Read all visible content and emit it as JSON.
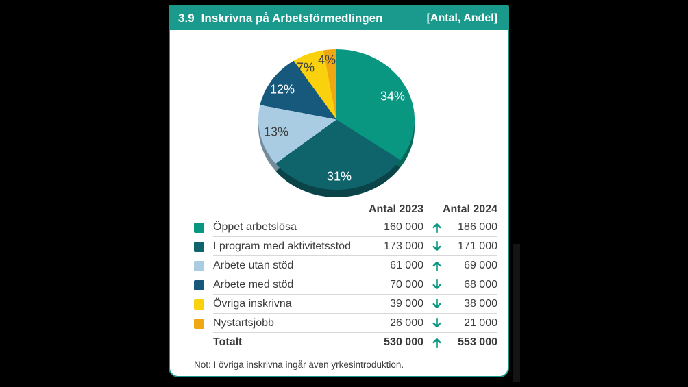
{
  "card": {
    "header": {
      "number": "3.9",
      "title": "Inskrivna på Arbetsförmedlingen",
      "tag": "[Antal, Andel]",
      "background": "#1a9a8c",
      "text_color": "#ffffff"
    },
    "note": "Not: I övriga inskrivna ingår även yrkesintroduktion."
  },
  "chart_data": {
    "type": "pie",
    "title": "Inskrivna på Arbetsförmedlingen",
    "value_note": "[Antal, Andel]",
    "style": "3d",
    "start_angle_deg": 0,
    "direction": "clockwise",
    "slices": [
      {
        "label": "Öppet arbetslösa",
        "percent": 34,
        "color": "#0a9781",
        "label_color": "#ffffff"
      },
      {
        "label": "I program med aktivitetsstöd",
        "percent": 31,
        "color": "#0f646c",
        "label_color": "#ffffff"
      },
      {
        "label": "Arbete utan stöd",
        "percent": 13,
        "color": "#a9cce3",
        "label_color": "#3e3e3e"
      },
      {
        "label": "Arbete med stöd",
        "percent": 12,
        "color": "#17597c",
        "label_color": "#ffffff"
      },
      {
        "label": "Övriga inskrivna",
        "percent": 7,
        "color": "#f9d20d",
        "label_color": "#3e3e3e"
      },
      {
        "label": "Nystartsjobb",
        "percent": 4,
        "color": "#f0a714",
        "label_color": "#3e3e3e"
      }
    ]
  },
  "table": {
    "columns": [
      "Antal 2023",
      "Antal 2024"
    ],
    "trend_color": "#0a9781",
    "rows": [
      {
        "label": "Öppet arbetslösa",
        "swatch": "#0a9781",
        "v2023": "160 000",
        "trend": "up",
        "v2024": "186 000",
        "total": false
      },
      {
        "label": "I program med aktivitetsstöd",
        "swatch": "#0f646c",
        "v2023": "173 000",
        "trend": "down",
        "v2024": "171 000",
        "total": false
      },
      {
        "label": "Arbete utan stöd",
        "swatch": "#a9cce3",
        "v2023": "61 000",
        "trend": "up",
        "v2024": "69 000",
        "total": false
      },
      {
        "label": "Arbete med stöd",
        "swatch": "#17597c",
        "v2023": "70 000",
        "trend": "down",
        "v2024": "68 000",
        "total": false
      },
      {
        "label": "Övriga inskrivna",
        "swatch": "#f9d20d",
        "v2023": "39 000",
        "trend": "down",
        "v2024": "38 000",
        "total": false
      },
      {
        "label": "Nystartsjobb",
        "swatch": "#f0a714",
        "v2023": "26 000",
        "trend": "down",
        "v2024": "21 000",
        "total": false
      },
      {
        "label": "Totalt",
        "swatch": null,
        "v2023": "530 000",
        "trend": "up",
        "v2024": "553 000",
        "total": true
      }
    ]
  }
}
